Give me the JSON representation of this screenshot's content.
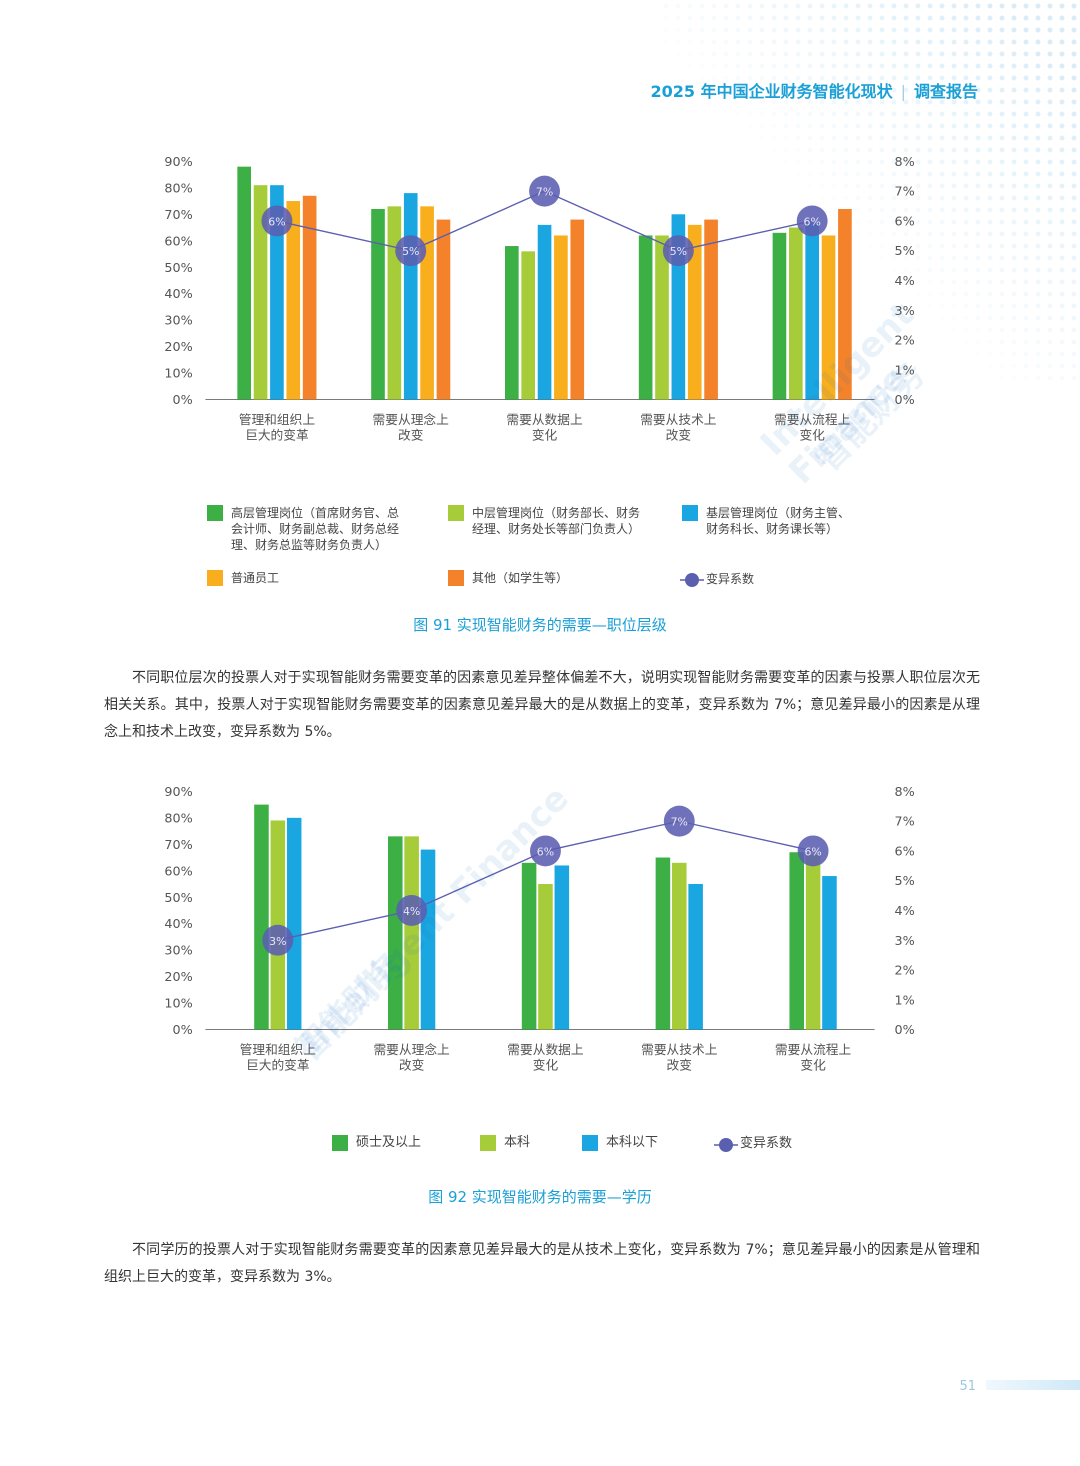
{
  "header": {
    "title": "2025 年中国企业财务智能化现状",
    "subtitle": "调查报告"
  },
  "watermark": {
    "text1": "Intelligent Finance",
    "text2": "智能财务"
  },
  "chart_data": [
    {
      "type": "bar",
      "categories": [
        "管理和组织上\n巨大的变革",
        "需要从理念上\n改变",
        "需要从数据上\n变化",
        "需要从技术上\n改变",
        "需要从流程上\n变化"
      ],
      "series": [
        {
          "name": "高层管理岗位（首席财务官、总会计师、财务副总裁、财务总经理、财务总监等财务负责人）",
          "color": "#3cb044",
          "values": [
            88,
            72,
            58,
            62,
            63
          ]
        },
        {
          "name": "中层管理岗位（财务部长、财务经理、财务处长等部门负责人）",
          "color": "#a6cc3a",
          "values": [
            81,
            73,
            56,
            62,
            65
          ]
        },
        {
          "name": "基层管理岗位（财务主管、财务科长、财务课长等）",
          "color": "#1aa6e0",
          "values": [
            81,
            78,
            66,
            70,
            67
          ]
        },
        {
          "name": "普通员工",
          "color": "#f8ae1d",
          "values": [
            75,
            73,
            62,
            66,
            62
          ]
        },
        {
          "name": "其他（如学生等）",
          "color": "#f3822a",
          "values": [
            77,
            68,
            68,
            68,
            72
          ]
        }
      ],
      "line": {
        "name": "变异系数",
        "color": "#5b5fb0",
        "values": [
          6,
          5,
          7,
          5,
          6
        ],
        "labels": [
          "6%",
          "5%",
          "7%",
          "5%",
          "6%"
        ]
      },
      "yticks": [
        "0%",
        "10%",
        "20%",
        "30%",
        "40%",
        "50%",
        "60%",
        "70%",
        "80%",
        "90%"
      ],
      "y2ticks": [
        "0%",
        "1%",
        "2%",
        "3%",
        "4%",
        "5%",
        "6%",
        "7%",
        "8%"
      ],
      "ylim": [
        0,
        90
      ],
      "y2lim": [
        0,
        8
      ],
      "title": "图 91 实现智能财务的需要—职位层级"
    },
    {
      "type": "bar",
      "categories": [
        "管理和组织上\n巨大的变革",
        "需要从理念上\n改变",
        "需要从数据上\n变化",
        "需要从技术上\n改变",
        "需要从流程上\n变化"
      ],
      "series": [
        {
          "name": "硕士及以上",
          "color": "#3cb044",
          "values": [
            85,
            73,
            63,
            65,
            67
          ]
        },
        {
          "name": "本科",
          "color": "#a6cc3a",
          "values": [
            79,
            73,
            55,
            63,
            66
          ]
        },
        {
          "name": "本科以下",
          "color": "#1aa6e0",
          "values": [
            80,
            68,
            62,
            55,
            58
          ]
        }
      ],
      "line": {
        "name": "变异系数",
        "color": "#5b5fb0",
        "values": [
          3,
          4,
          6,
          7,
          6
        ],
        "labels": [
          "3%",
          "4%",
          "6%",
          "7%",
          "6%"
        ]
      },
      "yticks": [
        "0%",
        "10%",
        "20%",
        "30%",
        "40%",
        "50%",
        "60%",
        "70%",
        "80%",
        "90%"
      ],
      "y2ticks": [
        "0%",
        "1%",
        "2%",
        "3%",
        "4%",
        "5%",
        "6%",
        "7%",
        "8%"
      ],
      "ylim": [
        0,
        90
      ],
      "y2lim": [
        0,
        8
      ],
      "title": "图 92 实现智能财务的需要—学历"
    }
  ],
  "legend1": {
    "items": [
      "高层管理岗位（首席财务官、总\n会计师、财务副总裁、财务总经\n理、财务总监等财务负责人）",
      "中层管理岗位（财务部长、财务\n经理、财务处长等部门负责人）",
      "基层管理岗位（财务主管、\n财务科长、财务课长等）",
      "普通员工",
      "其他（如学生等）",
      "变异系数"
    ]
  },
  "legend2": {
    "items": [
      "硕士及以上",
      "本科",
      "本科以下",
      "变异系数"
    ]
  },
  "paragraph1": "不同职位层次的投票人对于实现智能财务需要变革的因素意见差异整体偏差不大，说明实现智能财务需要变革的因素与投票人职位层次无相关关系。其中，投票人对于实现智能财务需要变革的因素意见差异最大的是从数据上的变革，变异系数为 7%；意见差异最小的因素是从理念上和技术上改变，变异系数为 5%。",
  "paragraph2": "不同学历的投票人对于实现智能财务需要变革的因素意见差异最大的是从技术上变化，变异系数为 7%；意见差异最小的因素是从管理和组织上巨大的变革，变异系数为 3%。",
  "page_number": "51"
}
